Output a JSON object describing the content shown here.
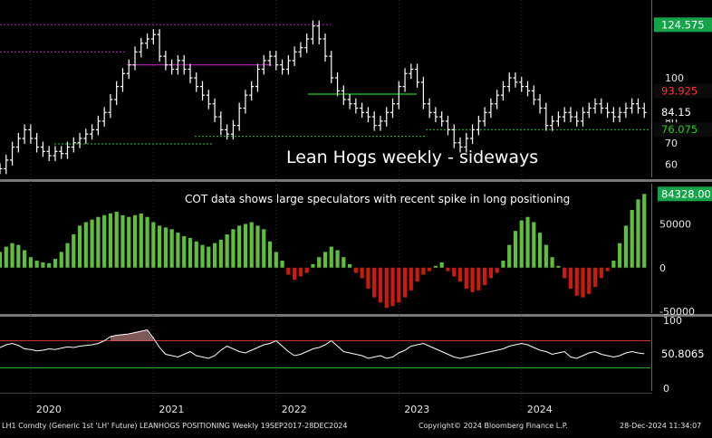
{
  "chart_data": [
    {
      "type": "line",
      "panel": "price",
      "annotation": "Lean Hogs weekly - sideways",
      "price_badges": [
        {
          "label": "124.575",
          "value": 124.575,
          "bg": "#16a34a",
          "fg": "#ffffff"
        },
        {
          "label": "93.925",
          "value": 93.925,
          "bg": "#0b0b0b",
          "fg": "#ff3030"
        },
        {
          "label": "84.15",
          "value": 84.15,
          "bg": "#000000",
          "fg": "#ffffff"
        },
        {
          "label": "76.075",
          "value": 76.075,
          "bg": "#0b0b0b",
          "fg": "#22cc22"
        }
      ],
      "y_ticks": [
        60,
        70,
        80,
        100
      ],
      "y_range": [
        54,
        136
      ],
      "x": [
        2019.75,
        2019.8,
        2019.85,
        2019.9,
        2019.95,
        2020.0,
        2020.05,
        2020.1,
        2020.15,
        2020.2,
        2020.25,
        2020.3,
        2020.35,
        2020.4,
        2020.45,
        2020.5,
        2020.55,
        2020.6,
        2020.65,
        2020.7,
        2020.75,
        2020.8,
        2020.85,
        2020.9,
        2020.95,
        2021.0,
        2021.05,
        2021.1,
        2021.15,
        2021.2,
        2021.25,
        2021.3,
        2021.35,
        2021.4,
        2021.45,
        2021.5,
        2021.55,
        2021.6,
        2021.65,
        2021.7,
        2021.75,
        2021.8,
        2021.85,
        2021.9,
        2021.95,
        2022.0,
        2022.05,
        2022.1,
        2022.15,
        2022.2,
        2022.25,
        2022.3,
        2022.35,
        2022.4,
        2022.45,
        2022.5,
        2022.55,
        2022.6,
        2022.65,
        2022.7,
        2022.75,
        2022.8,
        2022.85,
        2022.9,
        2022.95,
        2023.0,
        2023.05,
        2023.1,
        2023.15,
        2023.2,
        2023.25,
        2023.3,
        2023.35,
        2023.4,
        2023.45,
        2023.5,
        2023.55,
        2023.6,
        2023.65,
        2023.7,
        2023.75,
        2023.8,
        2023.85,
        2023.9,
        2023.95,
        2024.0,
        2024.05,
        2024.1,
        2024.15,
        2024.2,
        2024.25,
        2024.3,
        2024.35,
        2024.4,
        2024.45,
        2024.5,
        2024.55,
        2024.6,
        2024.65,
        2024.7,
        2024.75,
        2024.8,
        2024.85,
        2024.9,
        2024.95,
        2025.0
      ],
      "series": [
        {
          "values": [
            58,
            62,
            68,
            72,
            76,
            72,
            68,
            66,
            64,
            66,
            65,
            68,
            70,
            72,
            74,
            76,
            80,
            84,
            90,
            96,
            102,
            106,
            112,
            116,
            118,
            120,
            110,
            106,
            104,
            108,
            104,
            100,
            96,
            92,
            88,
            82,
            76,
            74,
            78,
            86,
            92,
            96,
            104,
            108,
            110,
            106,
            104,
            108,
            112,
            114,
            118,
            124,
            118,
            110,
            100,
            94,
            90,
            88,
            86,
            84,
            82,
            78,
            80,
            84,
            88,
            96,
            102,
            104,
            98,
            88,
            84,
            82,
            80,
            76,
            70,
            68,
            72,
            76,
            80,
            84,
            88,
            92,
            96,
            100,
            98,
            96,
            94,
            90,
            86,
            78,
            80,
            82,
            84,
            82,
            80,
            84,
            86,
            88,
            86,
            84,
            82,
            84,
            86,
            88,
            86,
            84
          ]
        }
      ]
    },
    {
      "type": "bar",
      "panel": "cot",
      "annotation": "COT data shows large speculators with recent spike in long positioning",
      "value_badge": "84328.00",
      "y_ticks": [
        50000,
        0,
        -50000
      ],
      "y_range": [
        -52000,
        96000
      ],
      "x": [
        2019.75,
        2019.8,
        2019.85,
        2019.9,
        2019.95,
        2020.0,
        2020.05,
        2020.1,
        2020.15,
        2020.2,
        2020.25,
        2020.3,
        2020.35,
        2020.4,
        2020.45,
        2020.5,
        2020.55,
        2020.6,
        2020.65,
        2020.7,
        2020.75,
        2020.8,
        2020.85,
        2020.9,
        2020.95,
        2021.0,
        2021.05,
        2021.1,
        2021.15,
        2021.2,
        2021.25,
        2021.3,
        2021.35,
        2021.4,
        2021.45,
        2021.5,
        2021.55,
        2021.6,
        2021.65,
        2021.7,
        2021.75,
        2021.8,
        2021.85,
        2021.9,
        2021.95,
        2022.0,
        2022.05,
        2022.1,
        2022.15,
        2022.2,
        2022.25,
        2022.3,
        2022.35,
        2022.4,
        2022.45,
        2022.5,
        2022.55,
        2022.6,
        2022.65,
        2022.7,
        2022.75,
        2022.8,
        2022.85,
        2022.9,
        2022.95,
        2023.0,
        2023.05,
        2023.1,
        2023.15,
        2023.2,
        2023.25,
        2023.3,
        2023.35,
        2023.4,
        2023.45,
        2023.5,
        2023.55,
        2023.6,
        2023.65,
        2023.7,
        2023.75,
        2023.8,
        2023.85,
        2023.9,
        2023.95,
        2024.0,
        2024.05,
        2024.1,
        2024.15,
        2024.2,
        2024.25,
        2024.3,
        2024.35,
        2024.4,
        2024.45,
        2024.5,
        2024.55,
        2024.6,
        2024.65,
        2024.7,
        2024.75,
        2024.8,
        2024.85,
        2024.9,
        2024.95,
        2025.0
      ],
      "values": [
        18000,
        24000,
        28000,
        26000,
        20000,
        12000,
        8000,
        6000,
        5000,
        10000,
        18000,
        28000,
        38000,
        48000,
        52000,
        55000,
        58000,
        60000,
        62000,
        64000,
        60000,
        58000,
        60000,
        62000,
        58000,
        52000,
        48000,
        46000,
        44000,
        40000,
        36000,
        34000,
        30000,
        26000,
        24000,
        28000,
        32000,
        38000,
        44000,
        48000,
        50000,
        52000,
        48000,
        44000,
        30000,
        18000,
        8000,
        -8000,
        -14000,
        -10000,
        -6000,
        4000,
        12000,
        18000,
        24000,
        20000,
        12000,
        4000,
        -6000,
        -12000,
        -24000,
        -34000,
        -40000,
        -46000,
        -44000,
        -40000,
        -34000,
        -26000,
        -16000,
        -8000,
        -4000,
        2000,
        6000,
        -4000,
        -10000,
        -16000,
        -24000,
        -28000,
        -26000,
        -20000,
        -12000,
        -6000,
        8000,
        26000,
        42000,
        54000,
        58000,
        52000,
        40000,
        26000,
        12000,
        2000,
        -12000,
        -24000,
        -32000,
        -34000,
        -30000,
        -22000,
        -12000,
        -4000,
        8000,
        28000,
        48000,
        66000,
        78000,
        84328
      ]
    },
    {
      "type": "line",
      "panel": "rsi",
      "value_badge": "50.8065",
      "y_ticks": [
        100,
        50,
        0
      ],
      "y_range": [
        -4,
        104
      ],
      "levels": [
        70,
        30
      ],
      "x": [
        2019.75,
        2019.8,
        2019.85,
        2019.9,
        2019.95,
        2020.0,
        2020.05,
        2020.1,
        2020.15,
        2020.2,
        2020.25,
        2020.3,
        2020.35,
        2020.4,
        2020.45,
        2020.5,
        2020.55,
        2020.6,
        2020.65,
        2020.7,
        2020.75,
        2020.8,
        2020.85,
        2020.9,
        2020.95,
        2021.0,
        2021.05,
        2021.1,
        2021.15,
        2021.2,
        2021.25,
        2021.3,
        2021.35,
        2021.4,
        2021.45,
        2021.5,
        2021.55,
        2021.6,
        2021.65,
        2021.7,
        2021.75,
        2021.8,
        2021.85,
        2021.9,
        2021.95,
        2022.0,
        2022.05,
        2022.1,
        2022.15,
        2022.2,
        2022.25,
        2022.3,
        2022.35,
        2022.4,
        2022.45,
        2022.5,
        2022.55,
        2022.6,
        2022.65,
        2022.7,
        2022.75,
        2022.8,
        2022.85,
        2022.9,
        2022.95,
        2023.0,
        2023.05,
        2023.1,
        2023.15,
        2023.2,
        2023.25,
        2023.3,
        2023.35,
        2023.4,
        2023.45,
        2023.5,
        2023.55,
        2023.6,
        2023.65,
        2023.7,
        2023.75,
        2023.8,
        2023.85,
        2023.9,
        2023.95,
        2024.0,
        2024.05,
        2024.1,
        2024.15,
        2024.2,
        2024.25,
        2024.3,
        2024.35,
        2024.4,
        2024.45,
        2024.5,
        2024.55,
        2024.6,
        2024.65,
        2024.7,
        2024.75,
        2024.8,
        2024.85,
        2024.9,
        2024.95,
        2025.0
      ],
      "values": [
        60,
        64,
        66,
        63,
        58,
        57,
        55,
        56,
        58,
        57,
        59,
        61,
        60,
        62,
        63,
        64,
        66,
        70,
        76,
        78,
        79,
        80,
        82,
        84,
        86,
        74,
        60,
        50,
        48,
        46,
        50,
        54,
        48,
        46,
        44,
        48,
        56,
        62,
        58,
        54,
        52,
        56,
        60,
        64,
        66,
        70,
        62,
        54,
        48,
        50,
        54,
        58,
        60,
        64,
        70,
        62,
        54,
        52,
        50,
        48,
        44,
        46,
        48,
        44,
        46,
        52,
        56,
        62,
        64,
        66,
        62,
        58,
        54,
        50,
        46,
        44,
        46,
        48,
        50,
        52,
        54,
        56,
        58,
        62,
        64,
        66,
        64,
        60,
        56,
        54,
        50,
        52,
        54,
        46,
        44,
        48,
        52,
        54,
        50,
        48,
        46,
        48,
        52,
        54,
        52,
        50.8
      ]
    }
  ],
  "x_axis": {
    "labels": [
      "2020",
      "2021",
      "2022",
      "2023",
      "2024"
    ],
    "positions": [
      2020,
      2021,
      2022,
      2023,
      2024
    ],
    "range": [
      2019.75,
      2025.05
    ]
  },
  "footer": {
    "left": "LH1 Comdty (Generic 1st 'LH' Future) LEANHOGS POSITIONING  Weekly 19SEP2017-28DEC2024",
    "center": "Copyright© 2024 Bloomberg Finance L.P.",
    "right": "28-Dec-2024 11:34:07"
  },
  "colors": {
    "background": "#000000",
    "price": "#ffffff",
    "cot_positive": "#5fbf3a",
    "cot_negative": "#cc1a10",
    "rsi_line": "#ffffff",
    "rsi_upper": "#d23030",
    "rsi_lower": "#2ea82e",
    "separator": "#777777"
  }
}
